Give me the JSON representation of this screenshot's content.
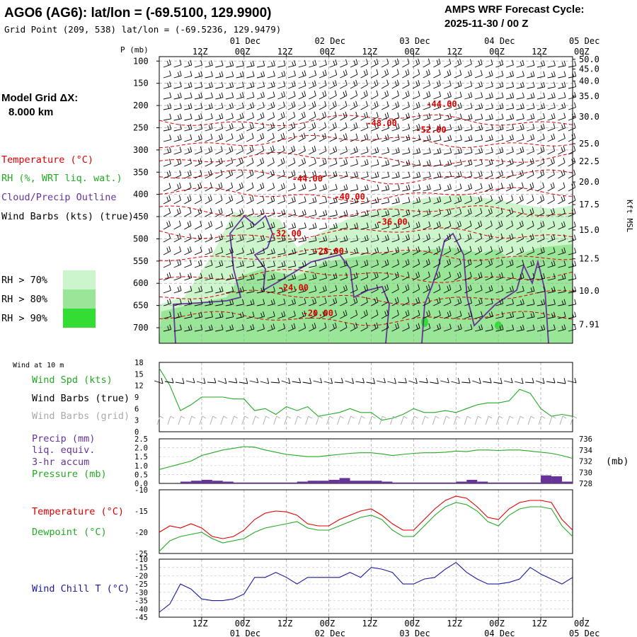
{
  "header": {
    "title": "AGO6 (AG6):  lat/lon = (-69.5100, 129.9900)",
    "gridpoint": "Grid Point (209, 538) lat/lon = (-69.5236, 129.9479)",
    "cycle_line1": "AMPS WRF Forecast Cycle:",
    "cycle_line2": "2025-11-30 / 00  Z",
    "model_grid_line1": "Model Grid ΔX:",
    "model_grid_line2": "8.000 km"
  },
  "time_axis": {
    "hours": [
      "12Z",
      "00Z",
      "12Z",
      "00Z",
      "12Z",
      "00Z",
      "12Z",
      "00Z",
      "12Z",
      "00Z"
    ],
    "hour_positions": [
      12,
      24,
      36,
      48,
      60,
      72,
      84,
      96,
      108,
      120
    ],
    "dates": [
      "01 Dec",
      "02 Dec",
      "03 Dec",
      "04 Dec",
      "05 Dec"
    ],
    "date_positions": [
      24,
      48,
      72,
      96,
      120
    ],
    "range": [
      0,
      117
    ]
  },
  "upper_left_labels": {
    "temperature": "Temperature (°C)",
    "rh": "RH (%, WRT liq. wat.)",
    "cloud": "Cloud/Precip Outline",
    "wind": "Wind Barbs (kts) (true)",
    "rh70": "RH > 70%",
    "rh80": "RH > 80%",
    "rh90": "RH > 90%"
  },
  "colors": {
    "temperature": "#dd0000",
    "rh_label": "#22aa22",
    "cloud": "#663399",
    "rh70": "#ccf5cc",
    "rh80": "#99e699",
    "rh90": "#33dd33",
    "windchill": "#1a1a99",
    "grid_barbs": "#aaaaaa",
    "axis": "#000000"
  },
  "panel_labels": {
    "wind10m_title": "Wind at 10 m",
    "wind_spd": "Wind Spd (kts)",
    "wind_barbs_true": "Wind Barbs (true)",
    "wind_barbs_grid": "Wind Barbs (grid)",
    "precip1": "Precip (mm)",
    "precip2": "liq. equiv.",
    "precip3": "3-hr accum",
    "pressure": "Pressure (mb)",
    "pressure_units": "(mb)",
    "temperature": "Temperature (°C)",
    "dewpoint": "Dewpoint (°C)",
    "windchill": "Wind Chill T (°C)"
  },
  "chart_data": [
    {
      "type": "heatmap",
      "title": "Vertical cross section: Temperature, RH, Cloud/Precip Outline, Wind Barbs",
      "ylabel": "P (mb)",
      "yticks": [
        100,
        150,
        200,
        250,
        300,
        350,
        400,
        450,
        500,
        550,
        600,
        650,
        700
      ],
      "ylim": [
        90,
        735
      ],
      "y2label": "Kft MSL",
      "kft_ticks": [
        {
          "p": 96,
          "label": "50.0"
        },
        {
          "p": 118,
          "label": "45.0"
        },
        {
          "p": 145,
          "label": "40.0"
        },
        {
          "p": 179,
          "label": "35.0"
        },
        {
          "p": 225,
          "label": "30.0"
        },
        {
          "p": 286,
          "label": "25.0"
        },
        {
          "p": 326,
          "label": "22.5"
        },
        {
          "p": 372,
          "label": "20.0"
        },
        {
          "p": 423,
          "label": "17.5"
        },
        {
          "p": 480,
          "label": "15.0"
        },
        {
          "p": 545,
          "label": "12.5"
        },
        {
          "p": 617,
          "label": "10.0"
        },
        {
          "p": 693,
          "label": "7.91"
        }
      ],
      "temperature_labels": [
        {
          "t": 80,
          "p": 197,
          "label": "-44.00"
        },
        {
          "t": 63,
          "p": 240,
          "label": "-48.00"
        },
        {
          "t": 77,
          "p": 255,
          "label": "-52.00"
        },
        {
          "t": 42,
          "p": 365,
          "label": "-44.00"
        },
        {
          "t": 54,
          "p": 405,
          "label": "-40.00"
        },
        {
          "t": 66,
          "p": 462,
          "label": "-36.00"
        },
        {
          "t": 36,
          "p": 488,
          "label": "-32.00"
        },
        {
          "t": 48,
          "p": 528,
          "label": "-28.00"
        },
        {
          "t": 38,
          "p": 610,
          "label": "-24.00"
        },
        {
          "t": 45,
          "p": 667,
          "label": "-20.00"
        }
      ],
      "isotherm_levels": [
        -20,
        -24,
        -28,
        -32,
        -36,
        -40,
        -44,
        -48,
        -52
      ]
    },
    {
      "type": "line",
      "title": "Wind at 10 m",
      "ylim": [
        0,
        18
      ],
      "yticks": [
        0,
        3,
        6,
        9,
        12,
        15,
        18
      ],
      "series": [
        {
          "name": "Wind Spd (kts)",
          "x": [
            0,
            3,
            6,
            9,
            12,
            15,
            18,
            21,
            24,
            27,
            30,
            33,
            36,
            39,
            42,
            45,
            48,
            51,
            54,
            57,
            60,
            63,
            66,
            69,
            72,
            75,
            78,
            81,
            84,
            87,
            90,
            93,
            96,
            99,
            102,
            105,
            108,
            111,
            114,
            117
          ],
          "values": [
            16.5,
            12,
            5.5,
            7,
            9,
            9,
            9,
            8.5,
            8.5,
            5.5,
            6,
            4.5,
            6.5,
            5.5,
            6.5,
            4,
            4.5,
            5,
            6,
            5,
            5,
            3,
            3.5,
            4.5,
            6,
            5,
            5,
            5.5,
            5,
            6,
            7,
            7.5,
            7.5,
            8,
            11,
            10,
            6,
            4,
            4.5,
            4
          ]
        }
      ]
    },
    {
      "type": "bar",
      "title": "Precip (mm) liq. equiv. 3-hr accum / Pressure (mb)",
      "ylim": [
        0,
        2.5
      ],
      "yticks": [
        0.0,
        0.5,
        1.0,
        1.5,
        2.0,
        2.5
      ],
      "y2lim": [
        728,
        736
      ],
      "y2ticks": [
        728,
        730,
        732,
        734,
        736
      ],
      "precip_x": [
        6,
        9,
        12,
        15,
        18,
        21,
        24,
        27,
        30,
        33,
        36,
        39,
        42,
        45,
        48,
        51,
        54,
        57,
        60,
        63,
        66,
        69,
        72,
        75,
        78,
        81,
        84,
        87,
        90,
        93,
        96,
        99,
        102,
        105,
        108,
        111,
        114
      ],
      "precip_values": [
        0.1,
        0.15,
        0.2,
        0.15,
        0.1,
        0.05,
        0.05,
        0.05,
        0.05,
        0.05,
        0.05,
        0.1,
        0.15,
        0.15,
        0.2,
        0.3,
        0.15,
        0.15,
        0.15,
        0.1,
        0.05,
        0.05,
        0.05,
        0.05,
        0.05,
        0.05,
        0.1,
        0.2,
        0.1,
        0.05,
        0.05,
        0.05,
        0.05,
        0.05,
        0.45,
        0.4,
        0.1
      ],
      "series": [
        {
          "name": "Pressure (mb)",
          "x": [
            0,
            3,
            6,
            9,
            12,
            15,
            18,
            21,
            24,
            27,
            30,
            33,
            36,
            39,
            42,
            45,
            48,
            51,
            54,
            57,
            60,
            63,
            66,
            69,
            72,
            75,
            78,
            81,
            84,
            87,
            90,
            93,
            96,
            99,
            102,
            105,
            108,
            111,
            114,
            117
          ],
          "values": [
            730.5,
            731,
            731.5,
            732,
            733,
            733.5,
            734,
            734.3,
            734.6,
            734.5,
            734,
            733.6,
            733.2,
            733,
            732.8,
            732.8,
            733,
            733.2,
            733.4,
            733.5,
            733.5,
            733.3,
            733,
            733.2,
            733.4,
            733.5,
            733.5,
            733.6,
            733.8,
            733.7,
            734,
            734,
            733.9,
            734,
            734,
            733.8,
            733.6,
            733.4,
            733,
            732.5
          ]
        }
      ]
    },
    {
      "type": "line",
      "title": "Temperature / Dewpoint (°C)",
      "ylim": [
        -25,
        -10
      ],
      "yticks": [
        -25,
        -20,
        -15,
        -10
      ],
      "series": [
        {
          "name": "Temperature (°C)",
          "x": [
            0,
            3,
            6,
            9,
            12,
            15,
            18,
            21,
            24,
            27,
            30,
            33,
            36,
            39,
            42,
            45,
            48,
            51,
            54,
            57,
            60,
            63,
            66,
            69,
            72,
            75,
            78,
            81,
            84,
            87,
            90,
            93,
            96,
            99,
            102,
            105,
            108,
            111,
            114,
            117
          ],
          "values": [
            -20,
            -18.5,
            -19,
            -18,
            -19,
            -21,
            -21.5,
            -21,
            -19.5,
            -17,
            -15.5,
            -15,
            -15.2,
            -16,
            -18,
            -18.5,
            -18.5,
            -17,
            -16,
            -15,
            -14.5,
            -16,
            -18,
            -19.5,
            -19.5,
            -17,
            -14.5,
            -12.5,
            -11.5,
            -12,
            -14,
            -16.5,
            -17,
            -14.5,
            -13,
            -12.5,
            -12.5,
            -13,
            -17,
            -19.5
          ]
        },
        {
          "name": "Dewpoint (°C)",
          "x": [
            0,
            3,
            6,
            9,
            12,
            15,
            18,
            21,
            24,
            27,
            30,
            33,
            36,
            39,
            42,
            45,
            48,
            51,
            54,
            57,
            60,
            63,
            66,
            69,
            72,
            75,
            78,
            81,
            84,
            87,
            90,
            93,
            96,
            99,
            102,
            105,
            108,
            111,
            114,
            117
          ],
          "values": [
            -24.5,
            -22,
            -21,
            -20.5,
            -20,
            -21.5,
            -22.5,
            -22,
            -21.5,
            -20,
            -19,
            -18.5,
            -18,
            -17.5,
            -19,
            -19.5,
            -19.5,
            -18.5,
            -17.5,
            -16.5,
            -16,
            -17,
            -19.5,
            -21,
            -21,
            -18.5,
            -16,
            -14,
            -13,
            -13.5,
            -15,
            -17.5,
            -18.5,
            -16,
            -14.5,
            -14,
            -14,
            -14.5,
            -18.5,
            -21
          ]
        }
      ]
    },
    {
      "type": "line",
      "title": "Wind Chill T (°C)",
      "ylim": [
        -45,
        -10
      ],
      "yticks": [
        -45,
        -40,
        -35,
        -30,
        -25,
        -20,
        -15,
        -10
      ],
      "series": [
        {
          "name": "Wind Chill T (°C)",
          "x": [
            0,
            3,
            6,
            9,
            12,
            15,
            18,
            21,
            24,
            27,
            30,
            33,
            36,
            39,
            42,
            45,
            48,
            51,
            54,
            57,
            60,
            63,
            66,
            69,
            72,
            75,
            78,
            81,
            84,
            87,
            90,
            93,
            96,
            99,
            102,
            105,
            108,
            111,
            114,
            117
          ],
          "values": [
            -42,
            -37,
            -25,
            -28,
            -34,
            -35,
            -35,
            -34,
            -31,
            -21,
            -21,
            -18,
            -21,
            -25,
            -21,
            -21,
            -21,
            -21,
            -18,
            -21,
            -15,
            -16,
            -18,
            -25,
            -25,
            -22,
            -21,
            -16,
            -12,
            -18,
            -22,
            -25,
            -25,
            -24,
            -22,
            -15,
            -19,
            -22,
            -25,
            -21
          ]
        }
      ]
    }
  ]
}
